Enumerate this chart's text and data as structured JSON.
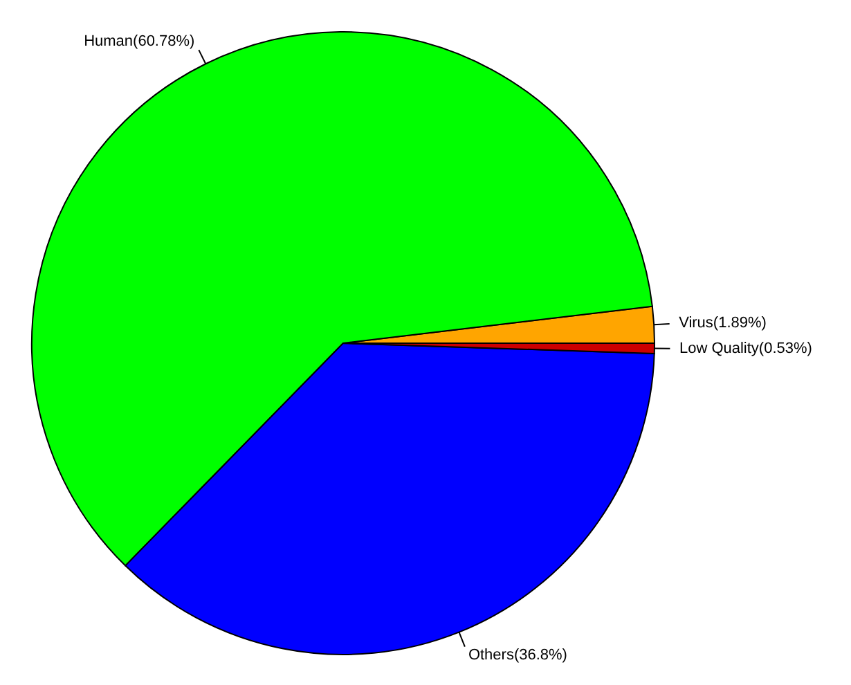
{
  "chart_data": {
    "type": "pie",
    "categories": [
      "Virus(1.89%)",
      "Human(60.78%)",
      "Others(36.8%)",
      "Low Quality(0.53%)"
    ],
    "values": [
      1.89,
      60.78,
      36.8,
      0.53
    ],
    "colors": [
      "#ffa500",
      "#00ff00",
      "#0000ff",
      "#cc0000"
    ]
  }
}
